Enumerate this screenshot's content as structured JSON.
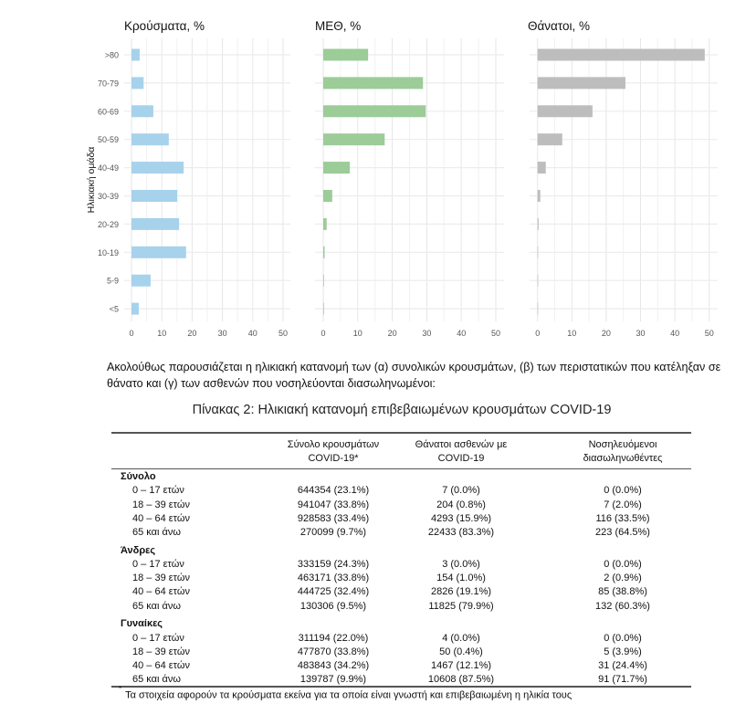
{
  "chart_data": [
    {
      "type": "bar",
      "orientation": "horizontal",
      "title": "Κρούσματα, %",
      "ylabel": "Ηλικιακή ομάδα",
      "color": "#a6d2ec",
      "categories": [
        ">80",
        "70-79",
        "60-69",
        "50-59",
        "40-49",
        "30-39",
        "20-29",
        "10-19",
        "5-9",
        "<5"
      ],
      "values": [
        2.7,
        4.0,
        7.2,
        12.3,
        17.2,
        15.1,
        15.7,
        18.0,
        6.3,
        2.4
      ],
      "xlim": [
        0,
        50
      ],
      "xticks": [
        "0",
        "10",
        "20",
        "30",
        "40",
        "50"
      ],
      "grid": true
    },
    {
      "type": "bar",
      "orientation": "horizontal",
      "title": "ΜΕΘ, %",
      "color": "#9ccc98",
      "categories": [
        ">80",
        "70-79",
        "60-69",
        "50-59",
        "40-49",
        "30-39",
        "20-29",
        "10-19",
        "5-9",
        "<5"
      ],
      "values": [
        13.0,
        28.9,
        29.7,
        17.8,
        7.7,
        2.6,
        1.0,
        0.4,
        0.2,
        0.2
      ],
      "xlim": [
        0,
        50
      ],
      "xticks": [
        "0",
        "10",
        "20",
        "30",
        "40",
        "50"
      ],
      "grid": true
    },
    {
      "type": "bar",
      "orientation": "horizontal",
      "title": "Θάνατοι, %",
      "color": "#bdbdbd",
      "categories": [
        ">80",
        "70-79",
        "60-69",
        "50-59",
        "40-49",
        "30-39",
        "20-29",
        "10-19",
        "5-9",
        "<5"
      ],
      "values": [
        48.7,
        25.6,
        16.0,
        7.2,
        2.4,
        0.8,
        0.3,
        0.1,
        0.0,
        0.1
      ],
      "xlim": [
        0,
        50
      ],
      "xticks": [
        "0",
        "10",
        "20",
        "30",
        "40",
        "50"
      ],
      "grid": true
    }
  ],
  "paragraph": "Ακολούθως παρουσιάζεται η ηλικιακή κατανομή των (α) συνολικών κρουσμάτων, (β) των περιστατικών που κατέληξαν σε θάνατο και (γ) των ασθενών που νοσηλεύονται διασωληνωμένοι:",
  "table": {
    "caption": "Πίνακας 2: Ηλικιακή κατανομή επιβεβαιωμένων κρουσμάτων COVID-19",
    "headers": [
      "Σύνολο κρουσμάτων\nCOVID-19*",
      "Θάνατοι ασθενών με\nCOVID-19",
      "Νοσηλευόμενοι\nδιασωληνωθέντες"
    ],
    "sections": [
      {
        "name": "Σύνολο",
        "rows": [
          {
            "label": "0 – 17 ετών",
            "cells": [
              "644354 (23.1%)",
              "7 (0.0%)",
              "0 (0.0%)"
            ]
          },
          {
            "label": "18 – 39 ετών",
            "cells": [
              "941047 (33.8%)",
              "204 (0.8%)",
              "7 (2.0%)"
            ]
          },
          {
            "label": "40 – 64 ετών",
            "cells": [
              "928583 (33.4%)",
              "4293 (15.9%)",
              "116 (33.5%)"
            ]
          },
          {
            "label": "65 και άνω",
            "cells": [
              "270099 (9.7%)",
              "22433 (83.3%)",
              "223 (64.5%)"
            ]
          }
        ]
      },
      {
        "name": "Άνδρες",
        "rows": [
          {
            "label": "0 – 17 ετών",
            "cells": [
              "333159 (24.3%)",
              "3 (0.0%)",
              "0 (0.0%)"
            ]
          },
          {
            "label": "18 – 39 ετών",
            "cells": [
              "463171 (33.8%)",
              "154 (1.0%)",
              "2 (0.9%)"
            ]
          },
          {
            "label": "40 – 64 ετών",
            "cells": [
              "444725 (32.4%)",
              "2826 (19.1%)",
              "85 (38.8%)"
            ]
          },
          {
            "label": "65 και άνω",
            "cells": [
              "130306 (9.5%)",
              "11825 (79.9%)",
              "132 (60.3%)"
            ]
          }
        ]
      },
      {
        "name": "Γυναίκες",
        "rows": [
          {
            "label": "0 – 17 ετών",
            "cells": [
              "311194 (22.0%)",
              "4 (0.0%)",
              "0 (0.0%)"
            ]
          },
          {
            "label": "18 – 39 ετών",
            "cells": [
              "477870 (33.8%)",
              "50 (0.4%)",
              "5 (3.9%)"
            ]
          },
          {
            "label": "40 – 64 ετών",
            "cells": [
              "483843 (34.2%)",
              "1467 (12.1%)",
              "31 (24.4%)"
            ]
          },
          {
            "label": "65 και άνω",
            "cells": [
              "139787 (9.9%)",
              "10608 (87.5%)",
              "91 (71.7%)"
            ]
          }
        ]
      }
    ],
    "footnote_marker": "*",
    "footnote": "Τα στοιχεία αφορούν τα κρούσματα εκείνα για τα οποία είναι γνωστή και επιβεβαιωμένη η ηλικία τους"
  }
}
